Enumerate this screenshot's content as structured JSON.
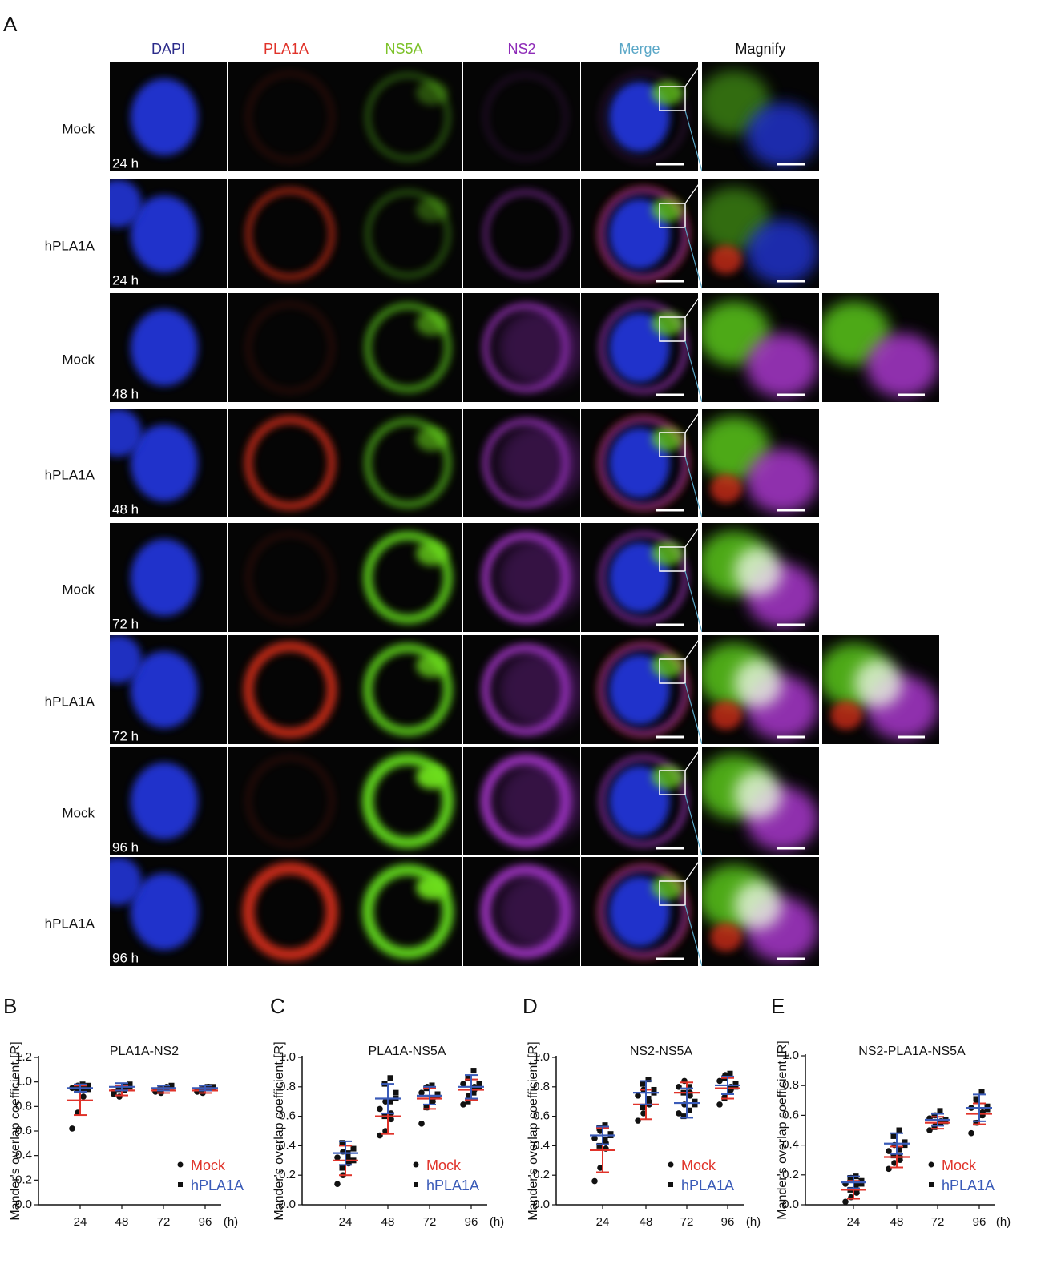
{
  "panel_a": {
    "letter": "A",
    "columns": [
      "DAPI",
      "PLA1A",
      "NS5A",
      "NS2",
      "Merge",
      "Magnify"
    ],
    "rows": [
      {
        "label": "Mock",
        "time": "24 h"
      },
      {
        "label": "hPLA1A",
        "time": "24 h"
      },
      {
        "label": "Mock",
        "time": "48 h"
      },
      {
        "label": "hPLA1A",
        "time": "48 h"
      },
      {
        "label": "Mock",
        "time": "72 h"
      },
      {
        "label": "hPLA1A",
        "time": "72 h"
      },
      {
        "label": "Mock",
        "time": "96 h"
      },
      {
        "label": "hPLA1A",
        "time": "96 h"
      }
    ]
  },
  "chart_data": [
    {
      "type": "scatter",
      "panel_label": "B",
      "title": "PLA1A-NS2",
      "y_label": "Mander's overlap coefficient [R]",
      "x_label": "(h)",
      "categories": [
        "24",
        "48",
        "72",
        "96"
      ],
      "ylim": [
        0,
        1.2
      ],
      "yticks": [
        {
          "value": 0,
          "label": "0.0"
        },
        0.2,
        0.4,
        0.6,
        0.8,
        {
          "value": 1,
          "label": "1.0"
        },
        1.2
      ],
      "series": [
        {
          "name": "Mock",
          "color": "#e0332a",
          "marker": "circle",
          "values": [
            0.85,
            0.93,
            0.93,
            0.93
          ],
          "error": [
            0.12,
            0.04,
            0.02,
            0.02
          ],
          "points": [
            [
              0.62,
              0.75,
              0.88,
              0.95,
              0.97,
              0.93
            ],
            [
              0.9,
              0.95,
              0.97,
              0.92,
              0.88,
              0.96
            ],
            [
              0.92,
              0.94,
              0.95,
              0.93,
              0.91,
              0.96
            ],
            [
              0.92,
              0.94,
              0.95,
              0.93,
              0.91,
              0.96
            ]
          ]
        },
        {
          "name": "hPLA1A",
          "color": "#3a5bb8",
          "marker": "square",
          "values": [
            0.95,
            0.96,
            0.95,
            0.95
          ],
          "error": [
            0.03,
            0.03,
            0.02,
            0.02
          ],
          "points": [
            [
              0.93,
              0.96,
              0.97,
              0.95,
              0.98,
              0.94
            ],
            [
              0.94,
              0.97,
              0.98,
              0.95,
              0.93,
              0.96
            ],
            [
              0.94,
              0.95,
              0.96,
              0.93,
              0.95,
              0.97
            ],
            [
              0.93,
              0.95,
              0.96,
              0.94,
              0.96,
              0.95
            ]
          ]
        }
      ]
    },
    {
      "type": "scatter",
      "panel_label": "C",
      "title": "PLA1A-NS5A",
      "y_label": "Mander's overlap coefficient [R]",
      "x_label": "(h)",
      "categories": [
        "24",
        "48",
        "72",
        "96"
      ],
      "ylim": [
        0,
        1
      ],
      "yticks": [
        {
          "value": 0,
          "label": "0.0"
        },
        0.2,
        0.4,
        0.6,
        0.8,
        {
          "value": 1,
          "label": "1.0"
        }
      ],
      "series": [
        {
          "name": "Mock",
          "color": "#e0332a",
          "marker": "circle",
          "values": [
            0.3,
            0.6,
            0.72,
            0.78
          ],
          "error": [
            0.1,
            0.12,
            0.07,
            0.07
          ],
          "points": [
            [
              0.14,
              0.2,
              0.28,
              0.32,
              0.36,
              0.3
            ],
            [
              0.47,
              0.5,
              0.58,
              0.65,
              0.7,
              0.62
            ],
            [
              0.55,
              0.66,
              0.72,
              0.76,
              0.8,
              0.7
            ],
            [
              0.68,
              0.74,
              0.78,
              0.82,
              0.86,
              0.8
            ]
          ]
        },
        {
          "name": "hPLA1A",
          "color": "#3a5bb8",
          "marker": "square",
          "values": [
            0.35,
            0.72,
            0.74,
            0.8
          ],
          "error": [
            0.08,
            0.1,
            0.06,
            0.08
          ],
          "points": [
            [
              0.25,
              0.32,
              0.38,
              0.42,
              0.35,
              0.3
            ],
            [
              0.6,
              0.7,
              0.76,
              0.82,
              0.86,
              0.72
            ],
            [
              0.66,
              0.7,
              0.75,
              0.79,
              0.81,
              0.74
            ],
            [
              0.7,
              0.76,
              0.82,
              0.86,
              0.91,
              0.8
            ]
          ]
        }
      ]
    },
    {
      "type": "scatter",
      "panel_label": "D",
      "title": "NS2-NS5A",
      "y_label": "Mander's overlap coefficient [R]",
      "x_label": "(h)",
      "categories": [
        "24",
        "48",
        "72",
        "96"
      ],
      "ylim": [
        0,
        1
      ],
      "yticks": [
        {
          "value": 0,
          "label": "0.0"
        },
        0.2,
        0.4,
        0.6,
        0.8,
        {
          "value": 1,
          "label": "1.0"
        }
      ],
      "series": [
        {
          "name": "Mock",
          "color": "#e0332a",
          "marker": "circle",
          "values": [
            0.37,
            0.68,
            0.76,
            0.79
          ],
          "error": [
            0.15,
            0.1,
            0.07,
            0.07
          ],
          "points": [
            [
              0.16,
              0.25,
              0.38,
              0.45,
              0.5,
              0.42
            ],
            [
              0.57,
              0.62,
              0.68,
              0.74,
              0.78,
              0.7
            ],
            [
              0.62,
              0.68,
              0.74,
              0.8,
              0.84,
              0.76
            ],
            [
              0.68,
              0.74,
              0.78,
              0.84,
              0.88,
              0.8
            ]
          ]
        },
        {
          "name": "hPLA1A",
          "color": "#3a5bb8",
          "marker": "square",
          "values": [
            0.47,
            0.76,
            0.69,
            0.81
          ],
          "error": [
            0.06,
            0.08,
            0.1,
            0.06
          ],
          "points": [
            [
              0.4,
              0.44,
              0.48,
              0.52,
              0.54,
              0.47
            ],
            [
              0.66,
              0.72,
              0.78,
              0.82,
              0.85,
              0.76
            ],
            [
              0.6,
              0.64,
              0.7,
              0.76,
              0.8,
              0.68
            ],
            [
              0.72,
              0.78,
              0.82,
              0.86,
              0.89,
              0.8
            ]
          ]
        }
      ]
    },
    {
      "type": "scatter",
      "panel_label": "E",
      "title": "NS2-PLA1A-NS5A",
      "y_label": "Mander's overlap coefficient [R]",
      "x_label": "(h)",
      "categories": [
        "24",
        "48",
        "72",
        "96"
      ],
      "ylim": [
        0,
        1
      ],
      "yticks": [
        {
          "value": 0,
          "label": "0.0"
        },
        0.2,
        0.4,
        0.6,
        0.8,
        {
          "value": 1,
          "label": "1.0"
        }
      ],
      "series": [
        {
          "name": "Mock",
          "color": "#e0332a",
          "marker": "circle",
          "values": [
            0.1,
            0.32,
            0.55,
            0.61
          ],
          "error": [
            0.06,
            0.07,
            0.04,
            0.07
          ],
          "points": [
            [
              0.02,
              0.05,
              0.1,
              0.14,
              0.18,
              0.08
            ],
            [
              0.24,
              0.28,
              0.32,
              0.36,
              0.4,
              0.3
            ],
            [
              0.5,
              0.53,
              0.56,
              0.58,
              0.6,
              0.55
            ],
            [
              0.48,
              0.55,
              0.6,
              0.65,
              0.7,
              0.62
            ]
          ]
        },
        {
          "name": "hPLA1A",
          "color": "#3a5bb8",
          "marker": "square",
          "values": [
            0.15,
            0.41,
            0.57,
            0.65
          ],
          "error": [
            0.04,
            0.07,
            0.04,
            0.09
          ],
          "points": [
            [
              0.1,
              0.13,
              0.16,
              0.18,
              0.19,
              0.14
            ],
            [
              0.33,
              0.37,
              0.42,
              0.46,
              0.5,
              0.4
            ],
            [
              0.52,
              0.55,
              0.57,
              0.6,
              0.63,
              0.56
            ],
            [
              0.55,
              0.6,
              0.66,
              0.71,
              0.76,
              0.64
            ]
          ]
        }
      ]
    }
  ]
}
